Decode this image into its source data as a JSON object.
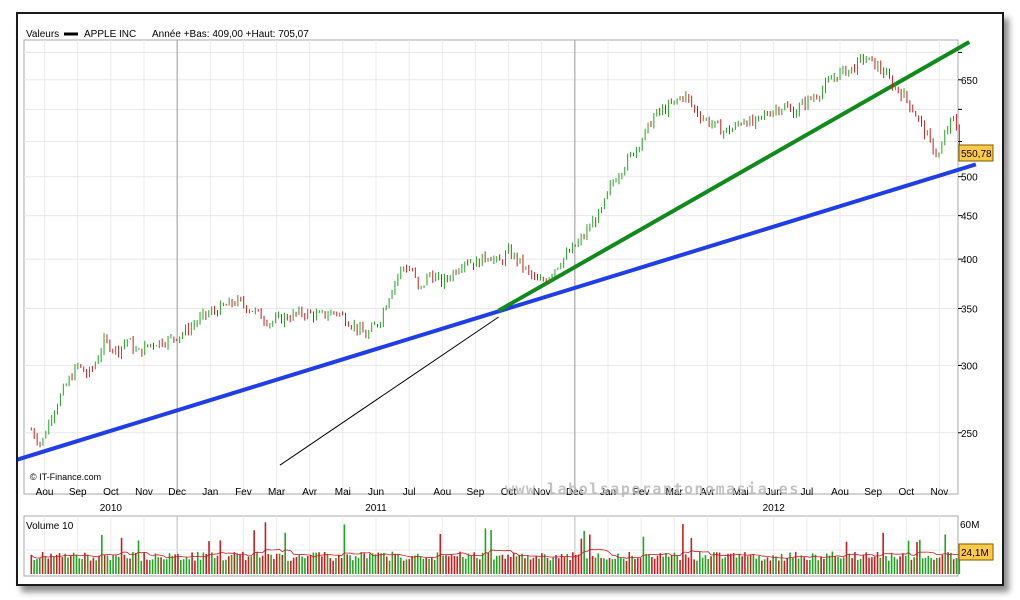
{
  "header": {
    "prefix": "Valeurs",
    "legend_series": "APPLE INC",
    "stats": "Année +Bas: 409,00 +Haut: 705,07"
  },
  "watermark": "www.labolsaporantonomasia.es",
  "credit": "© IT-Finance.com",
  "volume_panel": {
    "label": "Volume 10",
    "y_ticks": [
      "60M"
    ],
    "last_badge": "24,1M",
    "badge_color": "#ffc94a"
  },
  "chart_data": [
    {
      "type": "candlestick",
      "series": [
        {
          "name": "APPLE INC"
        }
      ],
      "x_month_labels": [
        "Aou",
        "Sep",
        "Oct",
        "Nov",
        "Dec",
        "Jan",
        "Fev",
        "Mar",
        "Avr",
        "Mai",
        "Jun",
        "Jul",
        "Aou",
        "Sep",
        "Oct",
        "Nov",
        "Dec",
        "Jan",
        "Fev",
        "Mar",
        "Avr",
        "Mai",
        "Jun",
        "Jul",
        "Aou",
        "Sep",
        "Oct",
        "Nov"
      ],
      "x_year_labels": [
        {
          "label": "2010",
          "month_index": 2
        },
        {
          "label": "2011",
          "month_index": 10
        },
        {
          "label": "2012",
          "month_index": 22
        }
      ],
      "x_range_months": [
        0,
        28
      ],
      "y_scale": "log",
      "y_range": [
        220,
        720
      ],
      "y_ticks": [
        250,
        300,
        350,
        400,
        450,
        500,
        550,
        600,
        650,
        700
      ],
      "y_tick_labels": [
        "250",
        "300",
        "350",
        "400",
        "450",
        "500",
        "",
        "",
        "650",
        ""
      ],
      "last_value_label": "550,78",
      "last_value": 550.78,
      "price_path": [
        {
          "m": 0.1,
          "v": 252
        },
        {
          "m": 0.4,
          "v": 242
        },
        {
          "m": 0.7,
          "v": 262
        },
        {
          "m": 1.1,
          "v": 282
        },
        {
          "m": 1.5,
          "v": 300
        },
        {
          "m": 1.8,
          "v": 292
        },
        {
          "m": 2.0,
          "v": 300
        },
        {
          "m": 2.3,
          "v": 320
        },
        {
          "m": 2.7,
          "v": 312
        },
        {
          "m": 3.0,
          "v": 322
        },
        {
          "m": 3.3,
          "v": 310
        },
        {
          "m": 3.7,
          "v": 318
        },
        {
          "m": 4.3,
          "v": 322
        },
        {
          "m": 4.7,
          "v": 328
        },
        {
          "m": 5.3,
          "v": 343
        },
        {
          "m": 5.8,
          "v": 350
        },
        {
          "m": 6.3,
          "v": 357
        },
        {
          "m": 6.8,
          "v": 348
        },
        {
          "m": 7.3,
          "v": 337
        },
        {
          "m": 7.8,
          "v": 342
        },
        {
          "m": 8.3,
          "v": 346
        },
        {
          "m": 8.8,
          "v": 343
        },
        {
          "m": 9.3,
          "v": 347
        },
        {
          "m": 9.8,
          "v": 335
        },
        {
          "m": 10.2,
          "v": 325
        },
        {
          "m": 10.6,
          "v": 338
        },
        {
          "m": 11.0,
          "v": 372
        },
        {
          "m": 11.3,
          "v": 392
        },
        {
          "m": 11.6,
          "v": 388
        },
        {
          "m": 11.8,
          "v": 365
        },
        {
          "m": 12.1,
          "v": 385
        },
        {
          "m": 12.5,
          "v": 375
        },
        {
          "m": 12.8,
          "v": 385
        },
        {
          "m": 13.2,
          "v": 400
        },
        {
          "m": 13.5,
          "v": 395
        },
        {
          "m": 13.9,
          "v": 405
        },
        {
          "m": 14.2,
          "v": 395
        },
        {
          "m": 14.5,
          "v": 408
        },
        {
          "m": 14.8,
          "v": 398
        },
        {
          "m": 15.1,
          "v": 385
        },
        {
          "m": 15.4,
          "v": 375
        },
        {
          "m": 15.7,
          "v": 382
        },
        {
          "m": 16.0,
          "v": 395
        },
        {
          "m": 16.4,
          "v": 410
        },
        {
          "m": 16.7,
          "v": 422
        },
        {
          "m": 17.0,
          "v": 440
        },
        {
          "m": 17.3,
          "v": 455
        },
        {
          "m": 17.6,
          "v": 490
        },
        {
          "m": 17.9,
          "v": 510
        },
        {
          "m": 18.2,
          "v": 530
        },
        {
          "m": 18.6,
          "v": 560
        },
        {
          "m": 18.9,
          "v": 590
        },
        {
          "m": 19.2,
          "v": 600
        },
        {
          "m": 19.5,
          "v": 610
        },
        {
          "m": 19.8,
          "v": 625
        },
        {
          "m": 20.1,
          "v": 600
        },
        {
          "m": 20.4,
          "v": 585
        },
        {
          "m": 20.7,
          "v": 575
        },
        {
          "m": 21.0,
          "v": 565
        },
        {
          "m": 21.3,
          "v": 570
        },
        {
          "m": 21.6,
          "v": 585
        },
        {
          "m": 21.9,
          "v": 575
        },
        {
          "m": 22.2,
          "v": 590
        },
        {
          "m": 22.5,
          "v": 600
        },
        {
          "m": 22.8,
          "v": 605
        },
        {
          "m": 23.1,
          "v": 595
        },
        {
          "m": 23.4,
          "v": 610
        },
        {
          "m": 23.7,
          "v": 620
        },
        {
          "m": 24.0,
          "v": 635
        },
        {
          "m": 24.3,
          "v": 655
        },
        {
          "m": 24.6,
          "v": 665
        },
        {
          "m": 24.9,
          "v": 670
        },
        {
          "m": 25.2,
          "v": 690
        },
        {
          "m": 25.5,
          "v": 680
        },
        {
          "m": 25.8,
          "v": 665
        },
        {
          "m": 26.1,
          "v": 640
        },
        {
          "m": 26.4,
          "v": 625
        },
        {
          "m": 26.7,
          "v": 600
        },
        {
          "m": 27.0,
          "v": 570
        },
        {
          "m": 27.3,
          "v": 540
        },
        {
          "m": 27.5,
          "v": 530
        },
        {
          "m": 27.7,
          "v": 565
        },
        {
          "m": 27.9,
          "v": 585
        },
        {
          "m": 28.0,
          "v": 575
        },
        {
          "m": 28.1,
          "v": 550.78
        }
      ],
      "trendlines": [
        {
          "color": "#1f3ee8",
          "width": 4,
          "from": {
            "m": -0.4,
            "v": 232
          },
          "to": {
            "m": 28.6,
            "v": 517
          }
        },
        {
          "color": "#118a1c",
          "width": 4,
          "from": {
            "m": 14.2,
            "v": 348
          },
          "to": {
            "m": 28.4,
            "v": 720
          }
        },
        {
          "color": "#000000",
          "width": 1,
          "from": {
            "m": 7.6,
            "v": 229
          },
          "to": {
            "m": 14.2,
            "v": 342
          }
        }
      ]
    }
  ]
}
